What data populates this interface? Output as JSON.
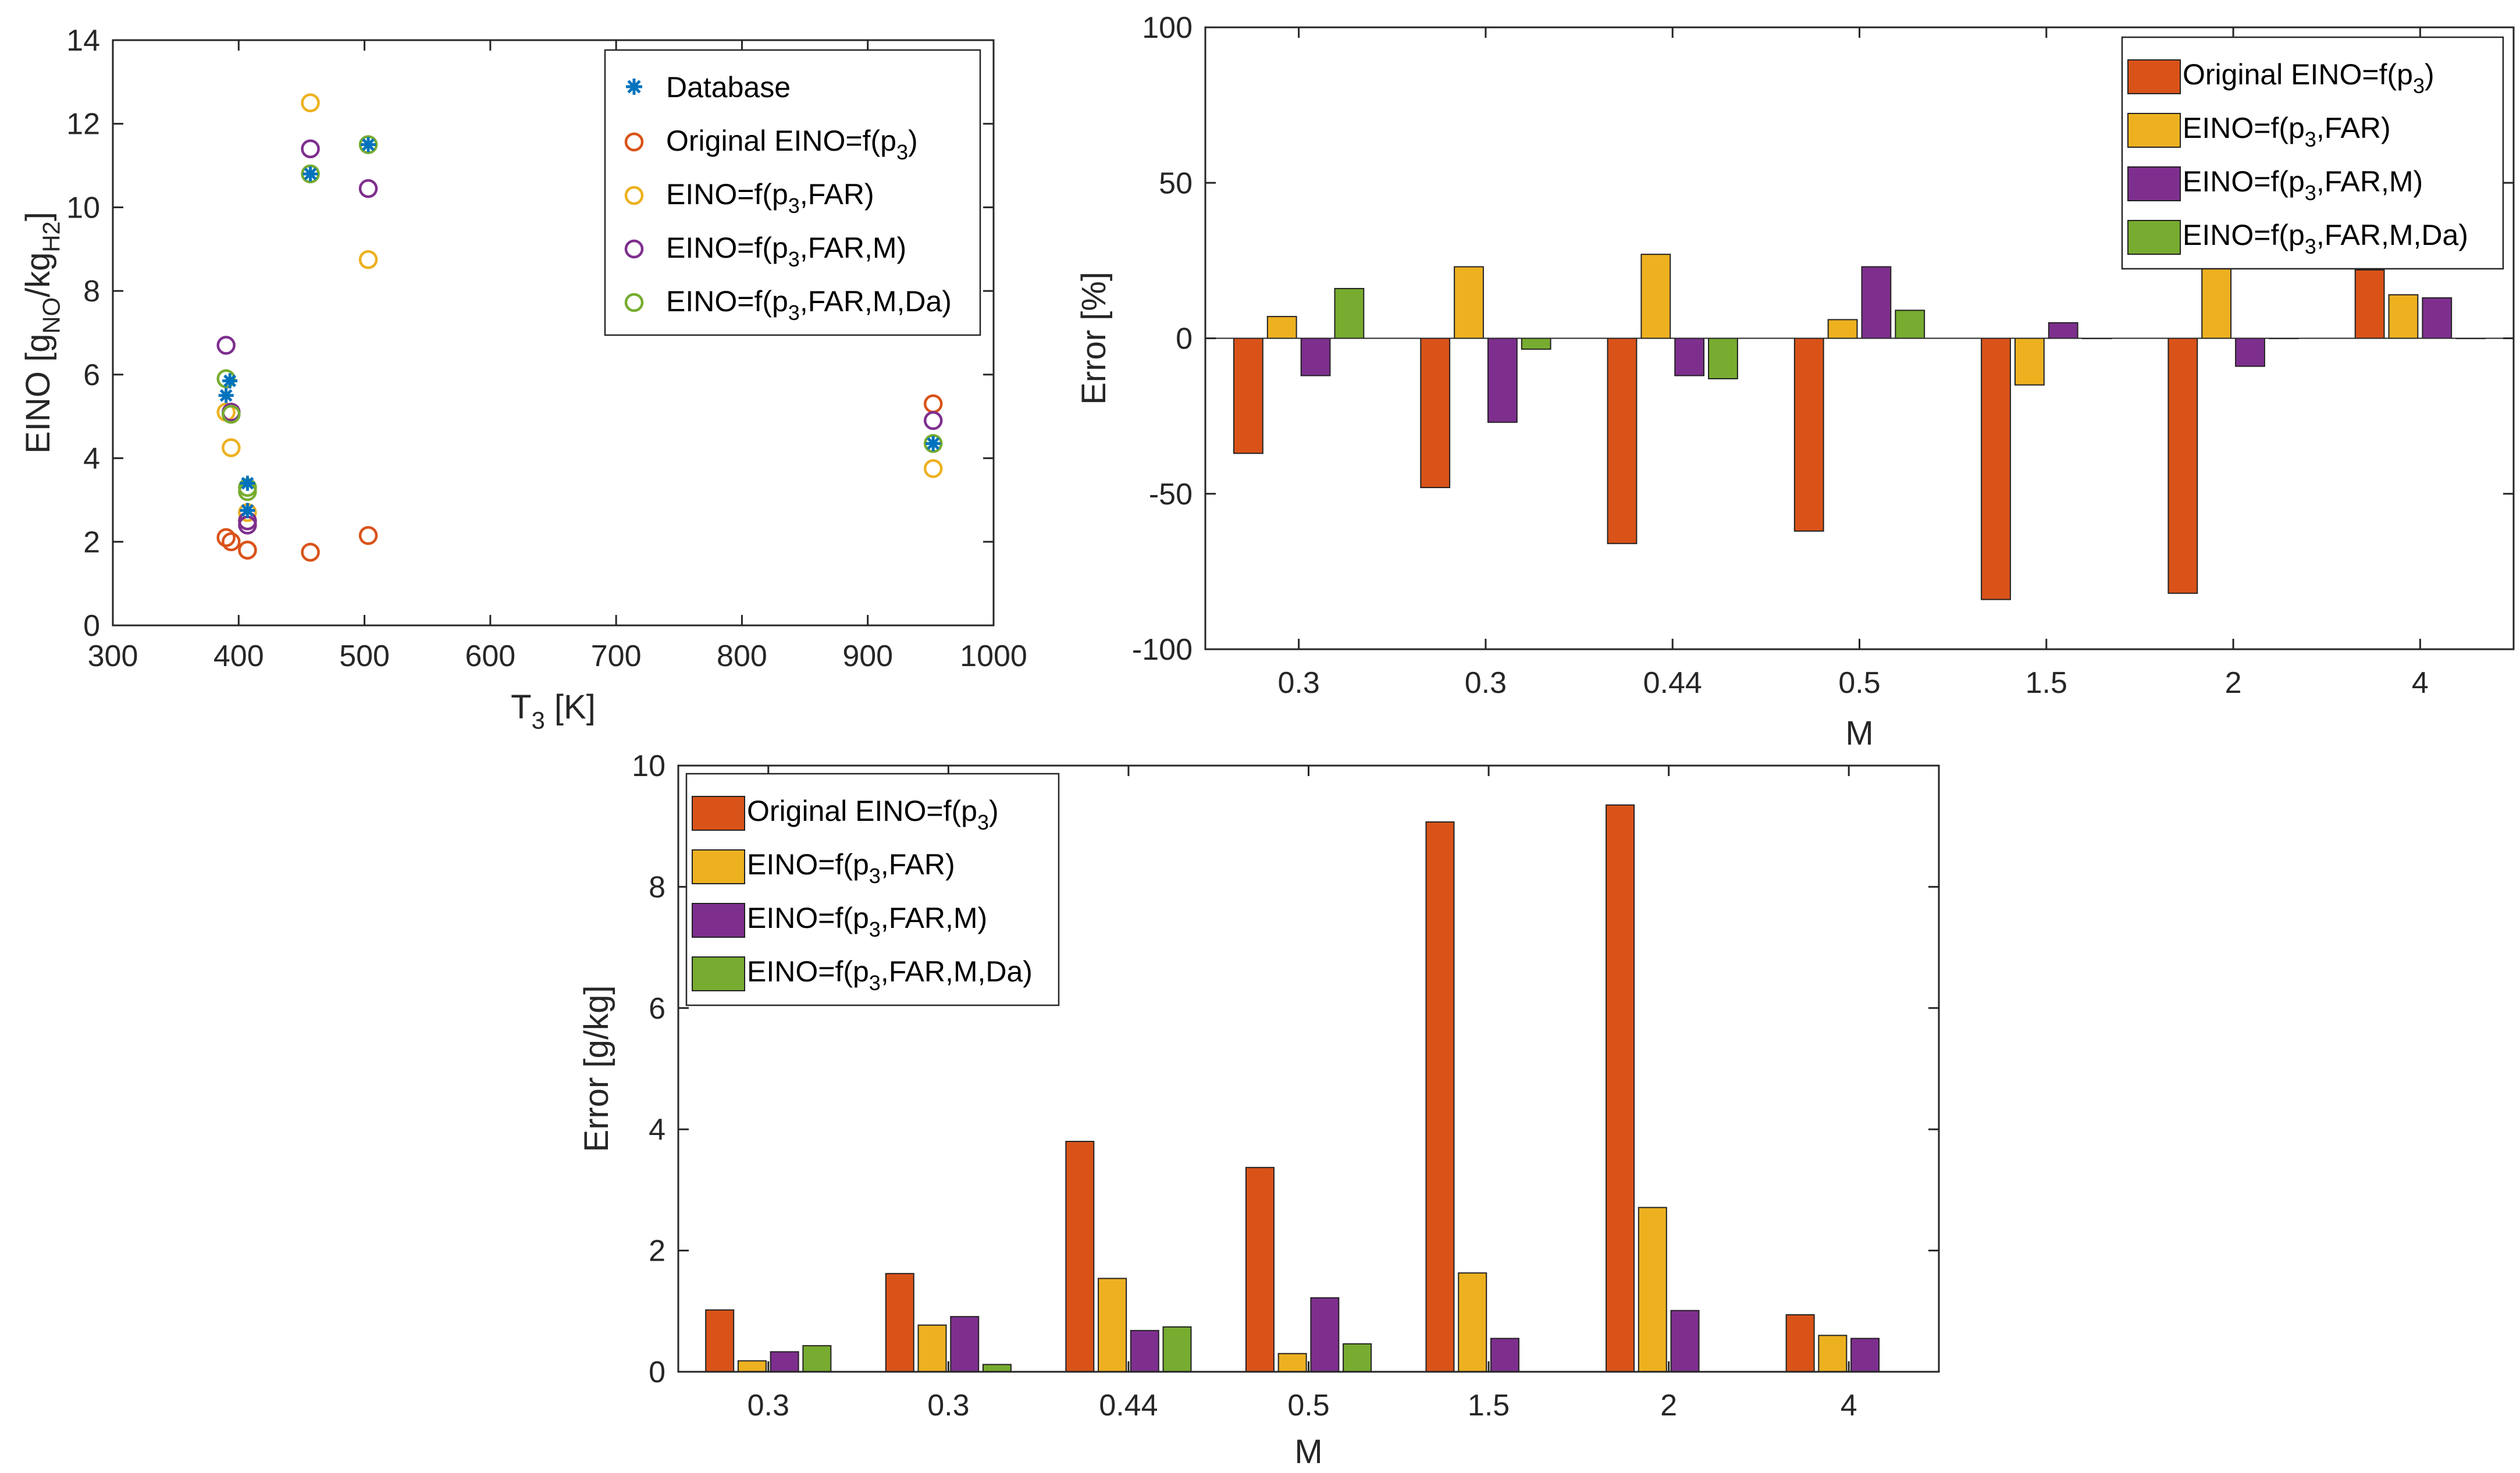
{
  "colors": {
    "database": "#0072BD",
    "original": "#D95319",
    "far": "#EDB120",
    "farm": "#7E2F8E",
    "farmda": "#77AC30"
  },
  "chart_data": [
    {
      "type": "scatter",
      "title": "",
      "xlabel": "T_3 [K]",
      "ylabel": "EINO [g_{NO}/kg_{H2}]",
      "xlim": [
        300,
        1000
      ],
      "ylim": [
        0,
        14
      ],
      "xticks": [
        "300",
        "400",
        "500",
        "600",
        "700",
        "800",
        "900",
        "1000"
      ],
      "yticks": [
        "0",
        "2",
        "4",
        "6",
        "8",
        "10",
        "12",
        "14"
      ],
      "legend_position": "top-right",
      "series": [
        {
          "name": "Database",
          "marker": "asterisk",
          "color_key": "database",
          "x": [
            390,
            393,
            407,
            407,
            457,
            503,
            952
          ],
          "y": [
            5.5,
            5.85,
            3.4,
            2.75,
            10.8,
            11.5,
            4.35
          ]
        },
        {
          "name": "Original EINO=f(p_3)",
          "marker": "circle",
          "color_key": "original",
          "x": [
            390,
            394,
            407,
            407,
            457,
            503,
            952
          ],
          "y": [
            2.1,
            2.0,
            1.8,
            1.8,
            1.75,
            2.15,
            5.3
          ]
        },
        {
          "name": "EINO=f(p_3,FAR)",
          "marker": "circle",
          "color_key": "far",
          "x": [
            390,
            394,
            407,
            407,
            457,
            503,
            952
          ],
          "y": [
            5.1,
            4.25,
            2.7,
            2.5,
            12.5,
            8.75,
            3.75
          ]
        },
        {
          "name": "EINO=f(p_3,FAR,M)",
          "marker": "circle",
          "color_key": "farm",
          "x": [
            390,
            394,
            407,
            407,
            457,
            503,
            952
          ],
          "y": [
            6.7,
            5.1,
            2.5,
            2.4,
            11.4,
            10.45,
            4.9
          ]
        },
        {
          "name": "EINO=f(p_3,FAR,M,Da)",
          "marker": "circle",
          "color_key": "farmda",
          "x": [
            390,
            394,
            407,
            407,
            457,
            503,
            952
          ],
          "y": [
            5.9,
            5.05,
            3.3,
            3.2,
            10.8,
            11.5,
            4.35
          ]
        }
      ]
    },
    {
      "type": "bar",
      "title": "",
      "xlabel": "M",
      "ylabel": "Error [%]",
      "ylim": [
        -100,
        100
      ],
      "yticks": [
        "-100",
        "-50",
        "0",
        "50",
        "100"
      ],
      "categories": [
        "0.3",
        "0.3",
        "0.44",
        "0.5",
        "1.5",
        "2",
        "4"
      ],
      "legend_position": "top-right",
      "series": [
        {
          "name": "Original EINO=f(p_3)",
          "color_key": "original",
          "values": [
            -37,
            -48,
            -66,
            -62,
            -84,
            -82,
            22
          ]
        },
        {
          "name": "EINO=f(p_3,FAR)",
          "color_key": "far",
          "values": [
            7,
            23,
            27,
            6,
            -15,
            24,
            14
          ]
        },
        {
          "name": "EINO=f(p_3,FAR,M)",
          "color_key": "farm",
          "values": [
            -12,
            -27,
            -12,
            23,
            5,
            -9,
            13
          ]
        },
        {
          "name": "EINO=f(p_3,FAR,M,Da)",
          "color_key": "farmda",
          "values": [
            16,
            -3.5,
            -13,
            9,
            0,
            0,
            0
          ]
        }
      ]
    },
    {
      "type": "bar",
      "title": "",
      "xlabel": "M",
      "ylabel": "Error [g/kg]",
      "ylim": [
        0,
        10
      ],
      "yticks": [
        "0",
        "2",
        "4",
        "6",
        "8",
        "10"
      ],
      "categories": [
        "0.3",
        "0.3",
        "0.44",
        "0.5",
        "1.5",
        "2",
        "4"
      ],
      "legend_position": "top-left",
      "series": [
        {
          "name": "Original EINO=f(p_3)",
          "color_key": "original",
          "values": [
            1.02,
            1.62,
            3.8,
            3.37,
            9.07,
            9.35,
            0.94
          ]
        },
        {
          "name": "EINO=f(p_3,FAR)",
          "color_key": "far",
          "values": [
            0.18,
            0.77,
            1.54,
            0.3,
            1.63,
            2.71,
            0.6
          ]
        },
        {
          "name": "EINO=f(p_3,FAR,M)",
          "color_key": "farm",
          "values": [
            0.33,
            0.91,
            0.68,
            1.22,
            0.55,
            1.01,
            0.55
          ]
        },
        {
          "name": "EINO=f(p_3,FAR,M,Da)",
          "color_key": "farmda",
          "values": [
            0.43,
            0.12,
            0.74,
            0.46,
            0,
            0,
            0
          ]
        }
      ]
    }
  ]
}
